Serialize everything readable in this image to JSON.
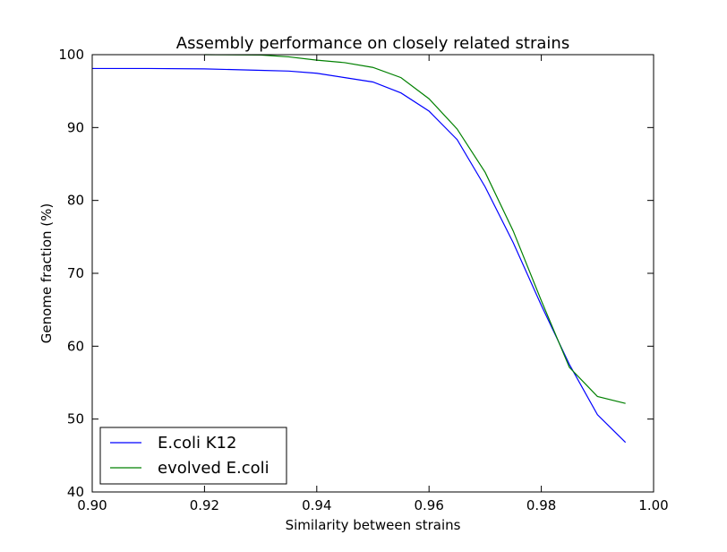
{
  "chart_data": {
    "type": "line",
    "title": "Assembly performance on closely related strains",
    "xlabel": "Similarity between strains",
    "ylabel": "Genome fraction (%)",
    "xlim": [
      0.9,
      1.0
    ],
    "ylim": [
      40,
      100
    ],
    "xticks": [
      "0.90",
      "0.92",
      "0.94",
      "0.96",
      "0.98",
      "1.00"
    ],
    "yticks": [
      "40",
      "50",
      "60",
      "70",
      "80",
      "90",
      "100"
    ],
    "grid": false,
    "legend_position": "lower-left",
    "series": [
      {
        "name": "E.coli K12",
        "color": "#0000ff",
        "points": [
          [
            0.9,
            98.1
          ],
          [
            0.91,
            98.1
          ],
          [
            0.92,
            98.05
          ],
          [
            0.93,
            97.85
          ],
          [
            0.935,
            97.75
          ],
          [
            0.94,
            97.45
          ],
          [
            0.945,
            96.85
          ],
          [
            0.95,
            96.25
          ],
          [
            0.955,
            94.75
          ],
          [
            0.96,
            92.25
          ],
          [
            0.965,
            88.35
          ],
          [
            0.97,
            81.85
          ],
          [
            0.975,
            74.2
          ],
          [
            0.98,
            65.6
          ],
          [
            0.985,
            57.5
          ],
          [
            0.99,
            50.6
          ],
          [
            0.995,
            46.8
          ]
        ]
      },
      {
        "name": "evolved E.coli",
        "color": "#008000",
        "points": [
          [
            0.92,
            100.0
          ],
          [
            0.93,
            99.95
          ],
          [
            0.935,
            99.7
          ],
          [
            0.94,
            99.25
          ],
          [
            0.945,
            98.9
          ],
          [
            0.95,
            98.25
          ],
          [
            0.955,
            96.85
          ],
          [
            0.96,
            93.95
          ],
          [
            0.965,
            89.8
          ],
          [
            0.97,
            83.85
          ],
          [
            0.975,
            75.8
          ],
          [
            0.98,
            66.25
          ],
          [
            0.985,
            57.1
          ],
          [
            0.99,
            53.1
          ],
          [
            0.995,
            52.15
          ]
        ]
      }
    ]
  }
}
